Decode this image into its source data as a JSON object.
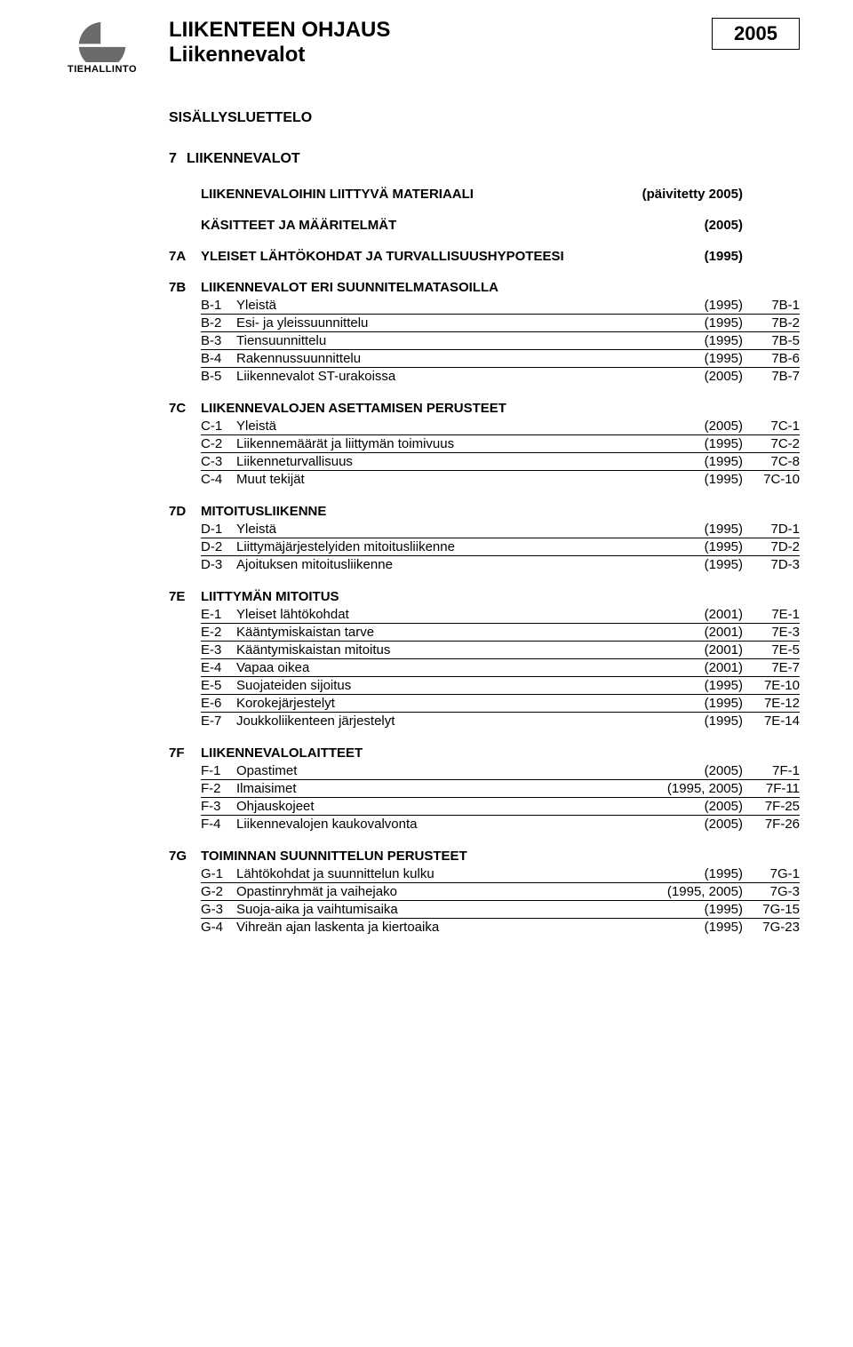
{
  "logo_caption": "TIEHALLINTO",
  "header_title1": "LIIKENTEEN OHJAUS",
  "header_title2": "Liikennevalot",
  "header_year": "2005",
  "toc_heading": "SISÄLLYSLUETTELO",
  "main_num": "7",
  "main_title": "LIIKENNEVALOT",
  "intro_rows": [
    {
      "code": "",
      "label": "LIIKENNEVALOIHIN LIITTYVÄ MATERIAALI",
      "year": "(päivitetty 2005)",
      "page": ""
    },
    {
      "code": "",
      "label": "KÄSITTEET JA MÄÄRITELMÄT",
      "year": "(2005)",
      "page": ""
    },
    {
      "code": "7A",
      "label": "YLEISET LÄHTÖKOHDAT JA TURVALLISUUSHYPOTEESI",
      "year": "(1995)",
      "page": ""
    }
  ],
  "sections": [
    {
      "code": "7B",
      "title": "LIIKENNEVALOT ERI SUUNNITELMATASOILLA",
      "items": [
        {
          "c": "B-1",
          "l": "Yleistä",
          "y": "(1995)",
          "p": "7B-1"
        },
        {
          "c": "B-2",
          "l": "Esi- ja yleissuunnittelu",
          "y": "(1995)",
          "p": "7B-2"
        },
        {
          "c": "B-3",
          "l": "Tiensuunnittelu",
          "y": "(1995)",
          "p": "7B-5"
        },
        {
          "c": "B-4",
          "l": "Rakennussuunnittelu",
          "y": "(1995)",
          "p": "7B-6"
        },
        {
          "c": "B-5",
          "l": "Liikennevalot ST-urakoissa",
          "y": "(2005)",
          "p": "7B-7"
        }
      ]
    },
    {
      "code": "7C",
      "title": "LIIKENNEVALOJEN ASETTAMISEN PERUSTEET",
      "items": [
        {
          "c": "C-1",
          "l": "Yleistä",
          "y": "(2005)",
          "p": "7C-1"
        },
        {
          "c": "C-2",
          "l": "Liikennemäärät ja liittymän toimivuus",
          "y": "(1995)",
          "p": "7C-2"
        },
        {
          "c": "C-3",
          "l": "Liikenneturvallisuus",
          "y": "(1995)",
          "p": "7C-8"
        },
        {
          "c": "C-4",
          "l": "Muut tekijät",
          "y": "(1995)",
          "p": "7C-10"
        }
      ]
    },
    {
      "code": "7D",
      "title": "MITOITUSLIIKENNE",
      "items": [
        {
          "c": "D-1",
          "l": "Yleistä",
          "y": "(1995)",
          "p": "7D-1"
        },
        {
          "c": "D-2",
          "l": "Liittymäjärjestelyiden mitoitusliikenne",
          "y": "(1995)",
          "p": "7D-2"
        },
        {
          "c": "D-3",
          "l": "Ajoituksen mitoitusliikenne",
          "y": "(1995)",
          "p": "7D-3"
        }
      ]
    },
    {
      "code": "7E",
      "title": "LIITTYMÄN MITOITUS",
      "items": [
        {
          "c": "E-1",
          "l": "Yleiset lähtökohdat",
          "y": "(2001)",
          "p": "7E-1"
        },
        {
          "c": "E-2",
          "l": "Kääntymiskaistan tarve",
          "y": "(2001)",
          "p": "7E-3"
        },
        {
          "c": "E-3",
          "l": "Kääntymiskaistan mitoitus",
          "y": "(2001)",
          "p": "7E-5"
        },
        {
          "c": "E-4",
          "l": "Vapaa oikea",
          "y": "(2001)",
          "p": "7E-7"
        },
        {
          "c": "E-5",
          "l": "Suojateiden sijoitus",
          "y": "(1995)",
          "p": "7E-10"
        },
        {
          "c": "E-6",
          "l": "Korokejärjestelyt",
          "y": "(1995)",
          "p": "7E-12"
        },
        {
          "c": "E-7",
          "l": "Joukkoliikenteen järjestelyt",
          "y": "(1995)",
          "p": "7E-14"
        }
      ]
    },
    {
      "code": "7F",
      "title": "LIIKENNEVALOLAITTEET",
      "items": [
        {
          "c": "F-1",
          "l": "Opastimet",
          "y": "(2005)",
          "p": "7F-1"
        },
        {
          "c": "F-2",
          "l": "Ilmaisimet",
          "y": "(1995, 2005)",
          "p": "7F-11"
        },
        {
          "c": "F-3",
          "l": "Ohjauskojeet",
          "y": "(2005)",
          "p": "7F-25"
        },
        {
          "c": "F-4",
          "l": "Liikennevalojen kaukovalvonta",
          "y": "(2005)",
          "p": "7F-26"
        }
      ]
    },
    {
      "code": "7G",
      "title": "TOIMINNAN SUUNNITTELUN PERUSTEET",
      "items": [
        {
          "c": "G-1",
          "l": "Lähtökohdat ja suunnittelun kulku",
          "y": "(1995)",
          "p": "7G-1"
        },
        {
          "c": "G-2",
          "l": "Opastinryhmät ja vaihejako",
          "y": "(1995, 2005)",
          "p": "7G-3"
        },
        {
          "c": "G-3",
          "l": "Suoja-aika ja vaihtumisaika",
          "y": "(1995)",
          "p": "7G-15"
        },
        {
          "c": "G-4",
          "l": "Vihreän ajan laskenta ja kiertoaika",
          "y": "(1995)",
          "p": "7G-23"
        }
      ]
    }
  ]
}
